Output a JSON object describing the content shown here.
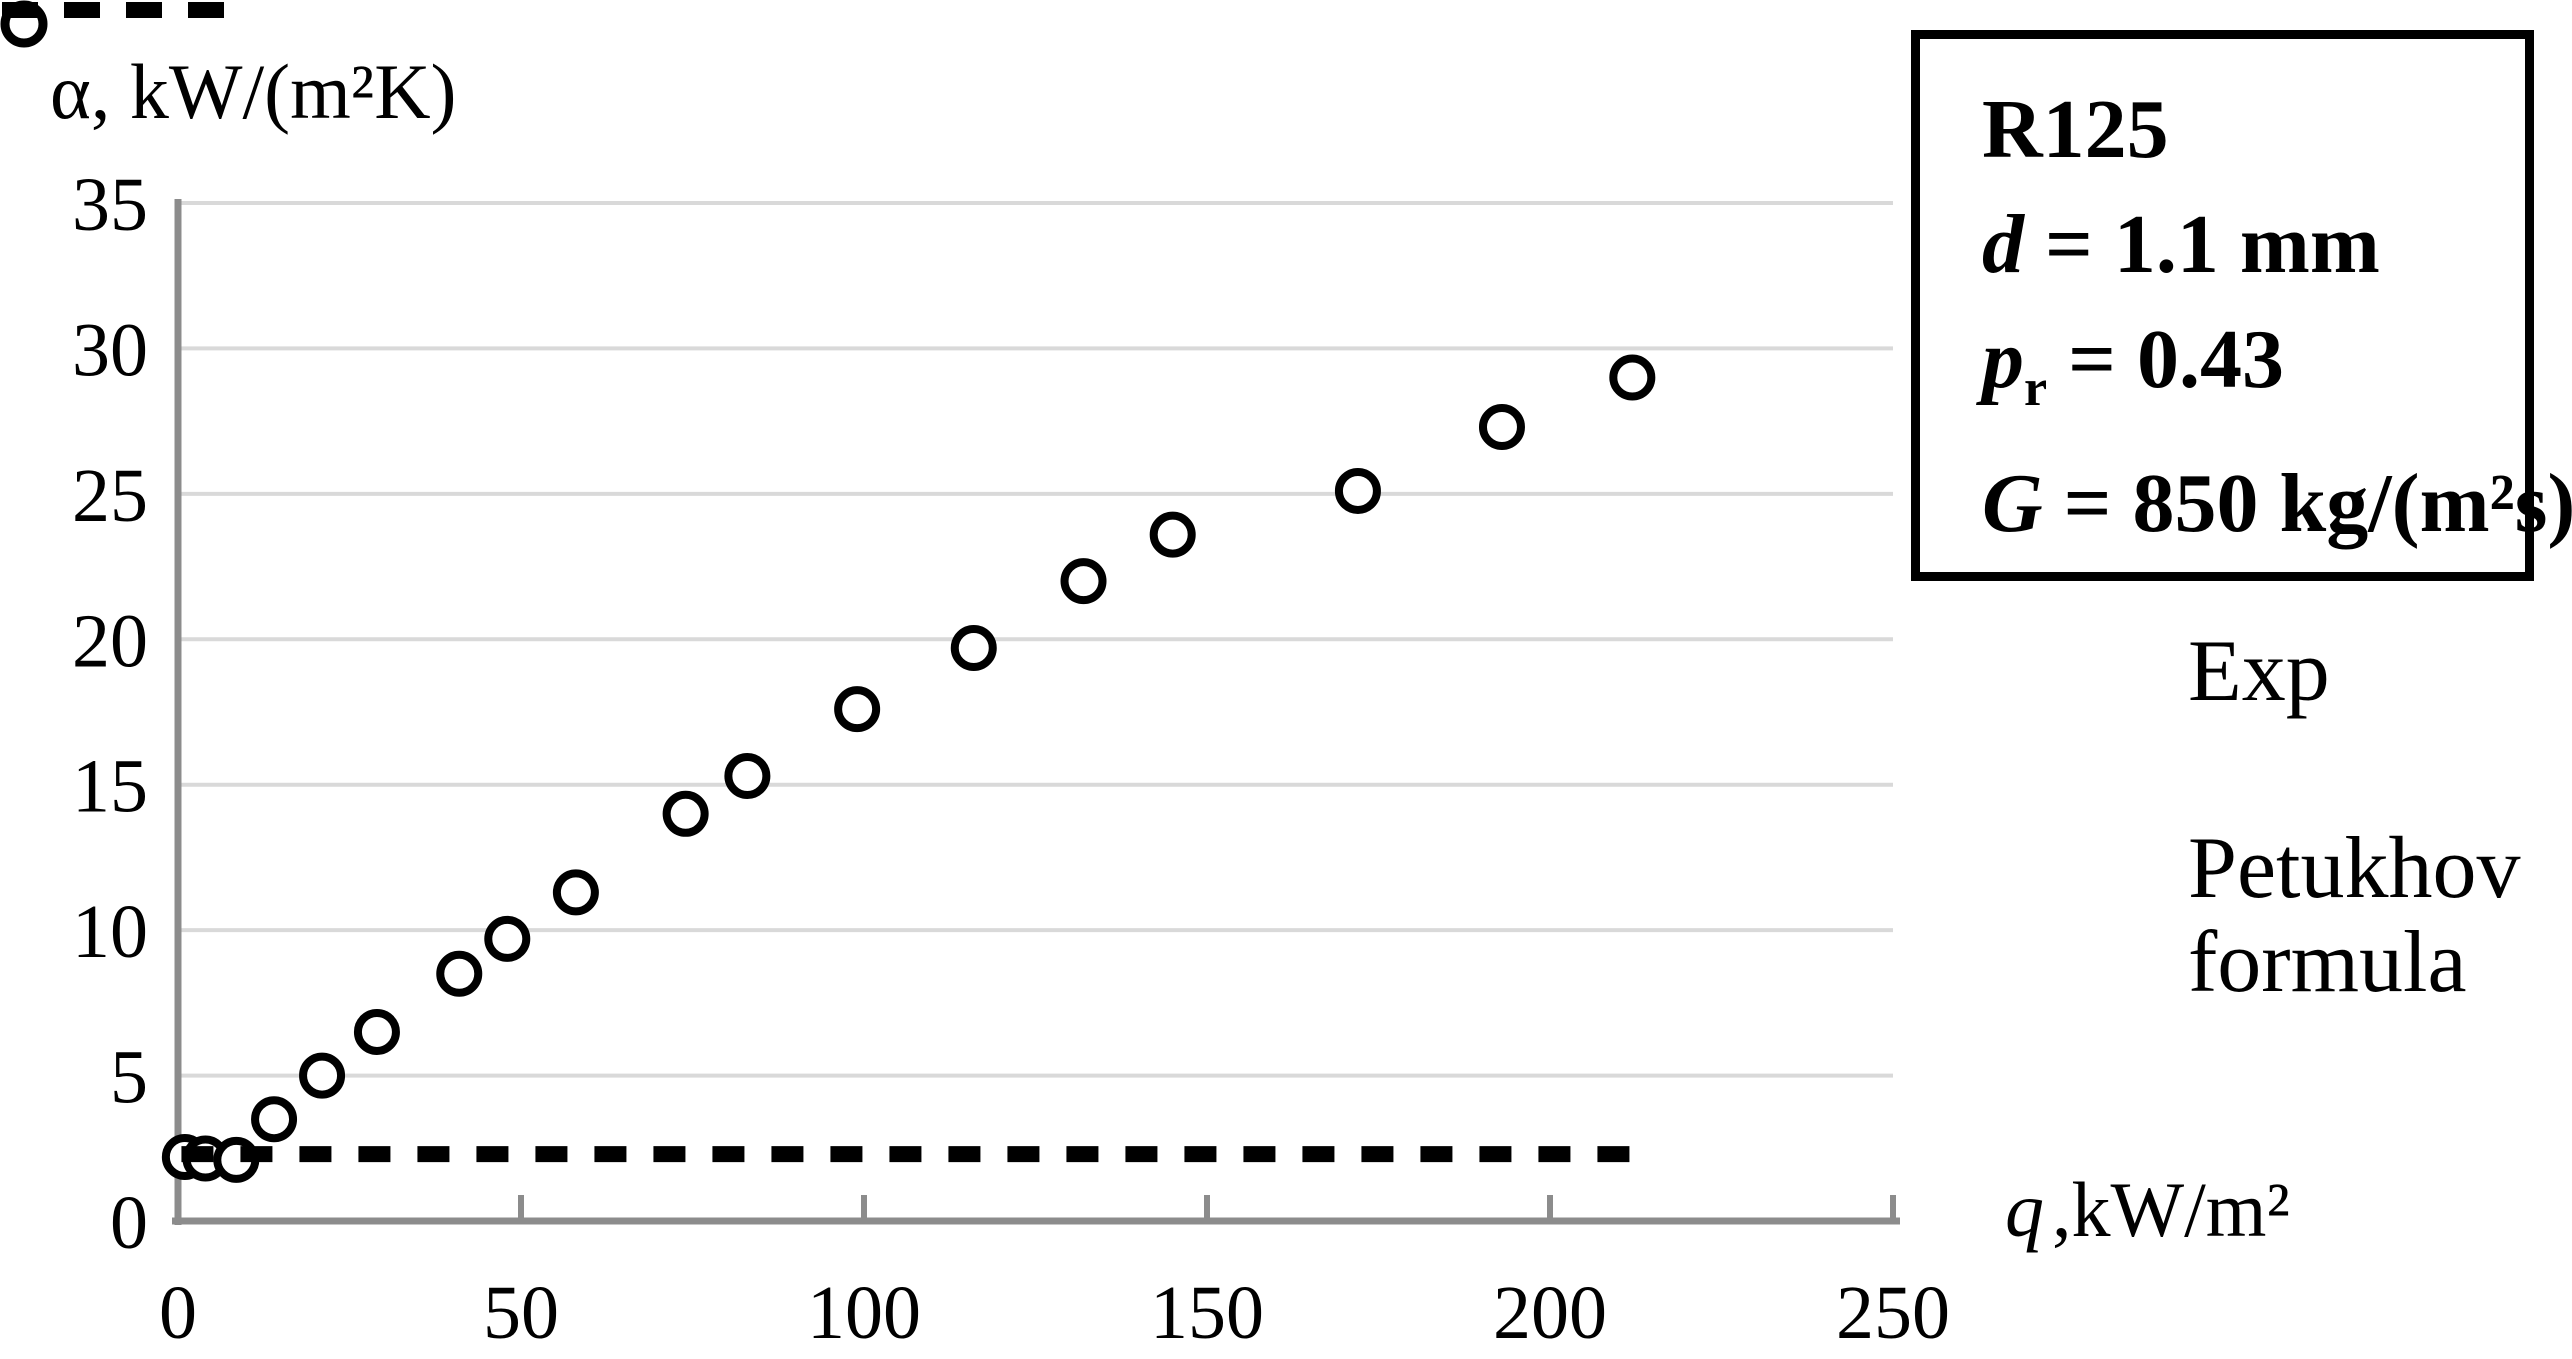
{
  "titles": {
    "y_axis_title": "α, kW/(m²K)",
    "x_axis_title_var": "q",
    "x_axis_title_rest": ",kW/m²"
  },
  "info_box": {
    "line1": "R125",
    "d": {
      "var": "d",
      "rest": " = 1.1 mm"
    },
    "p": {
      "var": "p",
      "sub": "r",
      "rest": " = 0.43"
    },
    "g": {
      "var": "G",
      "rest": " = 850 kg/(m²s)"
    }
  },
  "legend": {
    "exp": "Exp",
    "petukhov_line1": "Petukhov",
    "petukhov_line2": "formula"
  },
  "colors": {
    "background": "#ffffff",
    "grid": "#d9d9d9",
    "axis": "#8c8c8c",
    "ink": "#000000"
  },
  "chart_data": {
    "type": "scatter",
    "title": "",
    "xlabel": "q ,kW/m²",
    "ylabel": "α, kW/(m²K)",
    "xlim": [
      0,
      250
    ],
    "ylim": [
      0,
      35
    ],
    "x_ticks": [
      0,
      50,
      100,
      150,
      200,
      250
    ],
    "y_ticks": [
      0,
      5,
      10,
      15,
      20,
      25,
      30,
      35
    ],
    "grid": "horizontal-only",
    "legend_position": "right",
    "series": [
      {
        "name": "Exp",
        "type": "scatter",
        "marker": "open-circle",
        "x": [
          1,
          4,
          8.5,
          14,
          21,
          29,
          41,
          48,
          58,
          74,
          83,
          99,
          116,
          132,
          145,
          172,
          193,
          212
        ],
        "y": [
          2.2,
          2.15,
          2.1,
          3.5,
          5.0,
          6.5,
          8.5,
          9.7,
          11.3,
          14.0,
          15.3,
          17.6,
          19.7,
          22.0,
          23.6,
          25.1,
          27.3,
          29.0
        ]
      },
      {
        "name": "Petukhov formula",
        "type": "line",
        "style": "dashed",
        "y_value": 2.3,
        "x_start": 0.5,
        "x_end": 213
      }
    ]
  }
}
